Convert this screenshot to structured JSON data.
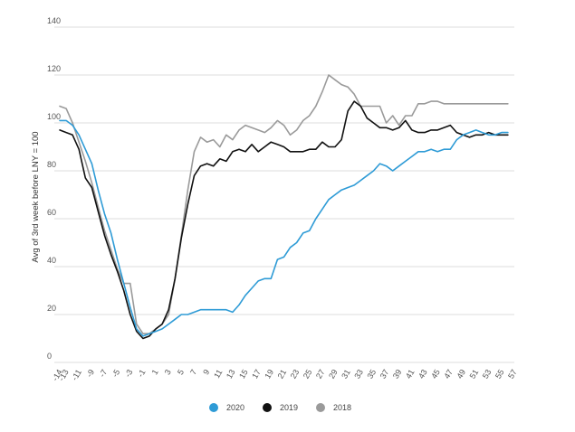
{
  "chart_data": {
    "type": "line",
    "title": "",
    "xlabel": "",
    "ylabel": "Avg of 3rd week before LNY = 100",
    "ylim": [
      0,
      140
    ],
    "yticks": [
      0,
      20,
      40,
      60,
      80,
      100,
      120,
      140
    ],
    "ytick_labels": [
      "0",
      "20",
      "40",
      "60",
      "80",
      "100",
      "120",
      "140"
    ],
    "xlim": [
      -14,
      57
    ],
    "xtick_labels": [
      "-14",
      "-13",
      "-11",
      "-9",
      "-7",
      "-5",
      "-3",
      "-1",
      "1",
      "3",
      "5",
      "7",
      "9",
      "11",
      "13",
      "15",
      "17",
      "19",
      "21",
      "23",
      "25",
      "27",
      "29",
      "31",
      "33",
      "35",
      "37",
      "39",
      "41",
      "43",
      "45",
      "47",
      "49",
      "51",
      "53",
      "55",
      "57"
    ],
    "grid": true,
    "legend_position": "bottom",
    "series": [
      {
        "name": "2020",
        "color": "#2e9bd6",
        "x": [
          -14,
          -13,
          -12,
          -11,
          -10,
          -9,
          -8,
          -7,
          -6,
          -5,
          -4,
          -3,
          -2,
          -1,
          0,
          1,
          2,
          3,
          4,
          5,
          6,
          7,
          8,
          9,
          10,
          11,
          12,
          13,
          14,
          15,
          16,
          17,
          18,
          19,
          20,
          21,
          22,
          23,
          24,
          25,
          26,
          27,
          28,
          29,
          30,
          31,
          32,
          33,
          34,
          35,
          36,
          37,
          38,
          39,
          40,
          41,
          42,
          43,
          44,
          45,
          46,
          47,
          48,
          49,
          50,
          51,
          52,
          53,
          54,
          55,
          56
        ],
        "values": [
          101,
          101,
          99,
          95,
          89,
          83,
          72,
          62,
          54,
          43,
          33,
          23,
          14,
          11,
          12,
          13,
          14,
          16,
          18,
          20,
          20,
          21,
          22,
          22,
          22,
          22,
          22,
          21,
          24,
          28,
          31,
          34,
          35,
          35,
          43,
          44,
          48,
          50,
          54,
          55,
          60,
          64,
          68,
          70,
          72,
          73,
          74,
          76,
          78,
          80,
          83,
          82,
          80,
          82,
          84,
          86,
          88,
          88,
          89,
          88,
          89,
          89,
          93,
          95,
          96,
          97,
          96,
          95,
          95,
          96,
          96
        ]
      },
      {
        "name": "2019",
        "color": "#111111",
        "x": [
          -14,
          -13,
          -12,
          -11,
          -10,
          -9,
          -8,
          -7,
          -6,
          -5,
          -4,
          -3,
          -2,
          -1,
          0,
          1,
          2,
          3,
          4,
          5,
          6,
          7,
          8,
          9,
          10,
          11,
          12,
          13,
          14,
          15,
          16,
          17,
          18,
          19,
          20,
          21,
          22,
          23,
          24,
          25,
          26,
          27,
          28,
          29,
          30,
          31,
          32,
          33,
          34,
          35,
          36,
          37,
          38,
          39,
          40,
          41,
          42,
          43,
          44,
          45,
          46,
          47,
          48,
          49,
          50,
          51,
          52,
          53,
          54,
          55,
          56
        ],
        "values": [
          97,
          96,
          95,
          89,
          77,
          73,
          63,
          53,
          45,
          38,
          30,
          20,
          13,
          10,
          11,
          14,
          16,
          22,
          35,
          52,
          66,
          78,
          82,
          83,
          82,
          85,
          84,
          88,
          89,
          88,
          91,
          88,
          90,
          92,
          91,
          90,
          88,
          88,
          88,
          89,
          89,
          92,
          90,
          90,
          93,
          105,
          109,
          107,
          102,
          100,
          98,
          98,
          97,
          98,
          101,
          97,
          96,
          96,
          97,
          97,
          98,
          99,
          96,
          95,
          94,
          95,
          95,
          96,
          95,
          95,
          95
        ]
      },
      {
        "name": "2018",
        "color": "#9a9a9a",
        "x": [
          -14,
          -13,
          -12,
          -11,
          -10,
          -9,
          -8,
          -7,
          -6,
          -5,
          -4,
          -3,
          -2,
          -1,
          0,
          1,
          2,
          3,
          4,
          5,
          6,
          7,
          8,
          9,
          10,
          11,
          12,
          13,
          14,
          15,
          16,
          17,
          18,
          19,
          20,
          21,
          22,
          23,
          24,
          25,
          26,
          27,
          28,
          29,
          30,
          31,
          32,
          33,
          34,
          35,
          36,
          37,
          38,
          39,
          40,
          41,
          42,
          43,
          44,
          45,
          46,
          47,
          48,
          49,
          50,
          51,
          52,
          53,
          54,
          55,
          56
        ],
        "values": [
          107,
          106,
          100,
          92,
          84,
          75,
          65,
          55,
          47,
          39,
          33,
          33,
          16,
          12,
          12,
          14,
          16,
          20,
          35,
          53,
          72,
          88,
          94,
          92,
          93,
          90,
          95,
          93,
          97,
          99,
          98,
          97,
          96,
          98,
          101,
          99,
          95,
          97,
          101,
          103,
          107,
          113,
          120,
          118,
          116,
          115,
          112,
          107,
          107,
          107,
          107,
          100,
          103,
          99,
          103,
          103,
          108,
          108,
          109,
          109,
          108,
          108,
          108,
          108,
          108,
          108,
          108,
          108,
          108,
          108,
          108
        ]
      }
    ]
  },
  "legend": {
    "items": [
      {
        "label": "2020",
        "color": "#2e9bd6"
      },
      {
        "label": "2019",
        "color": "#111111"
      },
      {
        "label": "2018",
        "color": "#9a9a9a"
      }
    ]
  }
}
